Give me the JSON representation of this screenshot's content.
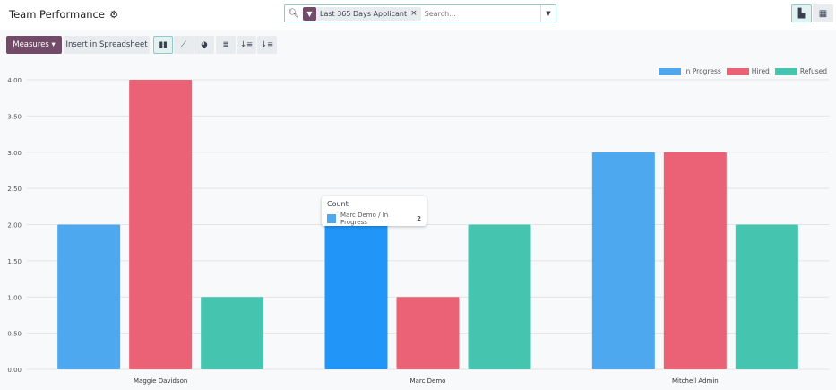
{
  "header": {
    "title": "Team Performance",
    "settings_icon": "gear-icon"
  },
  "search": {
    "facet_label": "Last 365 Days Applicant",
    "placeholder": "Search..."
  },
  "toolbar": {
    "measures": "Measures",
    "insert": "Insert in Spreadsheet",
    "bar_icon": "bar-chart-icon",
    "line_icon": "line-chart-icon",
    "pie_icon": "pie-chart-icon",
    "stack_icon": "stack-icon",
    "desc_icon": "sort-descending-icon",
    "asc_icon": "sort-ascending-icon"
  },
  "views": {
    "graph": "graph-view-icon",
    "pivot": "pivot-view-icon"
  },
  "tooltip": {
    "title": "Count",
    "label": "Marc Demo / In Progress",
    "value": "2"
  },
  "chart_data": {
    "type": "bar",
    "categories": [
      "Maggie Davidson",
      "Marc Demo",
      "Mitchell Admin"
    ],
    "series": [
      {
        "name": "In Progress",
        "color": "#4ea8f0",
        "values": [
          2,
          2,
          3
        ]
      },
      {
        "name": "Hired",
        "color": "#eb6176",
        "values": [
          4,
          1,
          3
        ]
      },
      {
        "name": "Refused",
        "color": "#45c5b0",
        "values": [
          1,
          2,
          2
        ]
      }
    ],
    "ylim": [
      0,
      4
    ],
    "yticks": [
      "0.00",
      "0.50",
      "1.00",
      "1.50",
      "2.00",
      "2.50",
      "3.00",
      "3.50",
      "4.00"
    ],
    "grid": true,
    "legend": "top-right"
  }
}
